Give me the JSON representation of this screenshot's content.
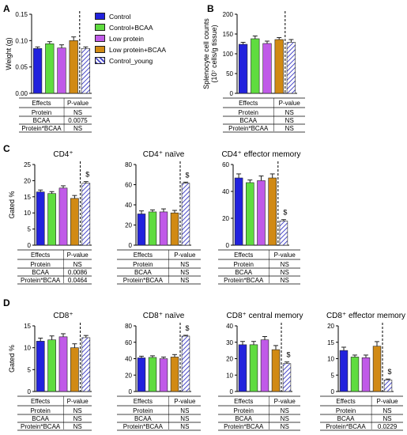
{
  "colors": {
    "control": "#2222dd",
    "control_bcaa": "#5fdc3f",
    "low_protein": "#c05ae8",
    "low_protein_bcaa": "#d18a14",
    "control_young_hatch": "#4a4ac8"
  },
  "legend": [
    {
      "label": "Control",
      "color": "#2222dd",
      "pattern": "solid"
    },
    {
      "label": "Control+BCAA",
      "color": "#5fdc3f",
      "pattern": "solid"
    },
    {
      "label": "Low protein",
      "color": "#c05ae8",
      "pattern": "solid"
    },
    {
      "label": "Low protein+BCAA",
      "color": "#d18a14",
      "pattern": "solid"
    },
    {
      "label": "Control_young",
      "color": "#4a4ac8",
      "pattern": "hatched"
    }
  ],
  "table_headers": {
    "effects": "Effects",
    "pvalue": "P-value"
  },
  "chart_data": [
    {
      "id": "A",
      "panel_letter": "A",
      "type": "bar",
      "title": "",
      "ylabel": "Weight (g)",
      "ylabel2": "",
      "ylim": [
        0,
        0.15
      ],
      "yticks": [
        "0.00",
        "0.05",
        "0.10",
        "0.15"
      ],
      "ytick_values": [
        0,
        0.05,
        0.1,
        0.15
      ],
      "values": [
        0.085,
        0.094,
        0.086,
        0.1,
        0.085
      ],
      "errors": [
        0.003,
        0.004,
        0.006,
        0.007,
        0.003
      ],
      "annotation": "",
      "stats": [
        {
          "effect": "Protein",
          "pvalue": "NS"
        },
        {
          "effect": "BCAA",
          "pvalue": "0.0075"
        },
        {
          "effect": "Protein*BCAA",
          "pvalue": "NS"
        }
      ]
    },
    {
      "id": "B",
      "panel_letter": "B",
      "type": "bar",
      "title": "",
      "ylabel": "Splenocyte cell counts",
      "ylabel2": "(10⁷ cells/g tissue)",
      "ylim": [
        0,
        200
      ],
      "yticks": [
        "0",
        "50",
        "100",
        "150",
        "200"
      ],
      "ytick_values": [
        0,
        50,
        100,
        150,
        200
      ],
      "values": [
        124,
        138,
        126,
        136,
        129
      ],
      "errors": [
        5,
        7,
        6,
        5,
        7
      ],
      "annotation": "",
      "stats": [
        {
          "effect": "Protein",
          "pvalue": "NS"
        },
        {
          "effect": "BCAA",
          "pvalue": "NS"
        },
        {
          "effect": "Protein*BCAA",
          "pvalue": "NS"
        }
      ]
    },
    {
      "id": "C1",
      "panel_letter": "C",
      "type": "bar",
      "title": "CD4⁺",
      "ylabel": "Gated %",
      "ylabel2": "",
      "ylim": [
        0,
        25
      ],
      "yticks": [
        "0",
        "5",
        "10",
        "15",
        "20",
        "25"
      ],
      "ytick_values": [
        0,
        5,
        10,
        15,
        20,
        25
      ],
      "values": [
        16.5,
        16,
        17.7,
        14.5,
        19.2
      ],
      "errors": [
        0.6,
        0.6,
        0.7,
        0.9,
        0.5
      ],
      "annotation": "$",
      "stats": [
        {
          "effect": "Protein",
          "pvalue": "NS"
        },
        {
          "effect": "BCAA",
          "pvalue": "0.0086"
        },
        {
          "effect": "Protein*BCAA",
          "pvalue": "0.0464"
        }
      ]
    },
    {
      "id": "C2",
      "panel_letter": "",
      "type": "bar",
      "title": "CD4⁺ naïve",
      "ylabel": "",
      "ylabel2": "",
      "ylim": [
        0,
        80
      ],
      "yticks": [
        "0",
        "20",
        "40",
        "60",
        "80"
      ],
      "ytick_values": [
        0,
        20,
        40,
        60,
        80
      ],
      "values": [
        31,
        33,
        33,
        32,
        61.5
      ],
      "errors": [
        3,
        2,
        3,
        2.5,
        1
      ],
      "annotation": "$",
      "stats": [
        {
          "effect": "Protein",
          "pvalue": "NS"
        },
        {
          "effect": "BCAA",
          "pvalue": "NS"
        },
        {
          "effect": "Protein*BCAA",
          "pvalue": "NS"
        }
      ]
    },
    {
      "id": "C3",
      "panel_letter": "",
      "type": "bar",
      "title": "CD4⁺ effector memory",
      "ylabel": "",
      "ylabel2": "",
      "ylim": [
        0,
        60
      ],
      "yticks": [
        "0",
        "20",
        "40",
        "60"
      ],
      "ytick_values": [
        0,
        20,
        40,
        60
      ],
      "values": [
        50,
        46.5,
        48,
        50,
        18
      ],
      "errors": [
        3,
        2,
        3.5,
        3,
        1
      ],
      "annotation": "$",
      "stats": [
        {
          "effect": "Protein",
          "pvalue": "NS"
        },
        {
          "effect": "BCAA",
          "pvalue": "NS"
        },
        {
          "effect": "Protein*BCAA",
          "pvalue": "NS"
        }
      ]
    },
    {
      "id": "D1",
      "panel_letter": "D",
      "type": "bar",
      "title": "CD8⁺",
      "ylabel": "Gated %",
      "ylabel2": "",
      "ylim": [
        0,
        15
      ],
      "yticks": [
        "0",
        "5",
        "10",
        "15"
      ],
      "ytick_values": [
        0,
        5,
        10,
        15
      ],
      "values": [
        11.5,
        11.8,
        12.5,
        10,
        12.3
      ],
      "errors": [
        0.7,
        0.9,
        0.7,
        0.9,
        0.5
      ],
      "annotation": "",
      "stats": [
        {
          "effect": "Protein",
          "pvalue": "NS"
        },
        {
          "effect": "BCAA",
          "pvalue": "NS"
        },
        {
          "effect": "Protein*BCAA",
          "pvalue": "NS"
        }
      ]
    },
    {
      "id": "D2",
      "panel_letter": "",
      "type": "bar",
      "title": "CD8⁺ naïve",
      "ylabel": "",
      "ylabel2": "",
      "ylim": [
        0,
        80
      ],
      "yticks": [
        "0",
        "20",
        "40",
        "60",
        "80"
      ],
      "ytick_values": [
        0,
        20,
        40,
        60,
        80
      ],
      "values": [
        41,
        41.5,
        40,
        42,
        67.5
      ],
      "errors": [
        2,
        2,
        2,
        3,
        1
      ],
      "annotation": "$",
      "stats": [
        {
          "effect": "Protein",
          "pvalue": "NS"
        },
        {
          "effect": "BCAA",
          "pvalue": "NS"
        },
        {
          "effect": "Protein*BCAA",
          "pvalue": "NS"
        }
      ]
    },
    {
      "id": "D3",
      "panel_letter": "",
      "type": "bar",
      "title": "CD8⁺ central memory",
      "ylabel": "",
      "ylabel2": "",
      "ylim": [
        0,
        40
      ],
      "yticks": [
        "0",
        "10",
        "20",
        "30",
        "40"
      ],
      "ytick_values": [
        0,
        10,
        20,
        30,
        40
      ],
      "values": [
        28.5,
        28.5,
        31.5,
        25.5,
        17
      ],
      "errors": [
        2,
        2,
        2,
        2.5,
        1
      ],
      "annotation": "$",
      "stats": [
        {
          "effect": "Protein",
          "pvalue": "NS"
        },
        {
          "effect": "BCAA",
          "pvalue": "NS"
        },
        {
          "effect": "Protein*BCAA",
          "pvalue": "NS"
        }
      ]
    },
    {
      "id": "D4",
      "panel_letter": "",
      "type": "bar",
      "title": "CD8⁺ effector memory",
      "ylabel": "",
      "ylabel2": "",
      "ylim": [
        0,
        20
      ],
      "yticks": [
        "0",
        "5",
        "10",
        "15",
        "20"
      ],
      "ytick_values": [
        0,
        5,
        10,
        15,
        20
      ],
      "values": [
        12.5,
        10.5,
        10.3,
        13.8,
        3.5
      ],
      "errors": [
        1,
        0.6,
        0.8,
        1.4,
        0.3
      ],
      "annotation": "$",
      "stats": [
        {
          "effect": "Protein",
          "pvalue": "NS"
        },
        {
          "effect": "BCAA",
          "pvalue": "NS"
        },
        {
          "effect": "Protein*BCAA",
          "pvalue": "0.0229"
        }
      ]
    }
  ]
}
